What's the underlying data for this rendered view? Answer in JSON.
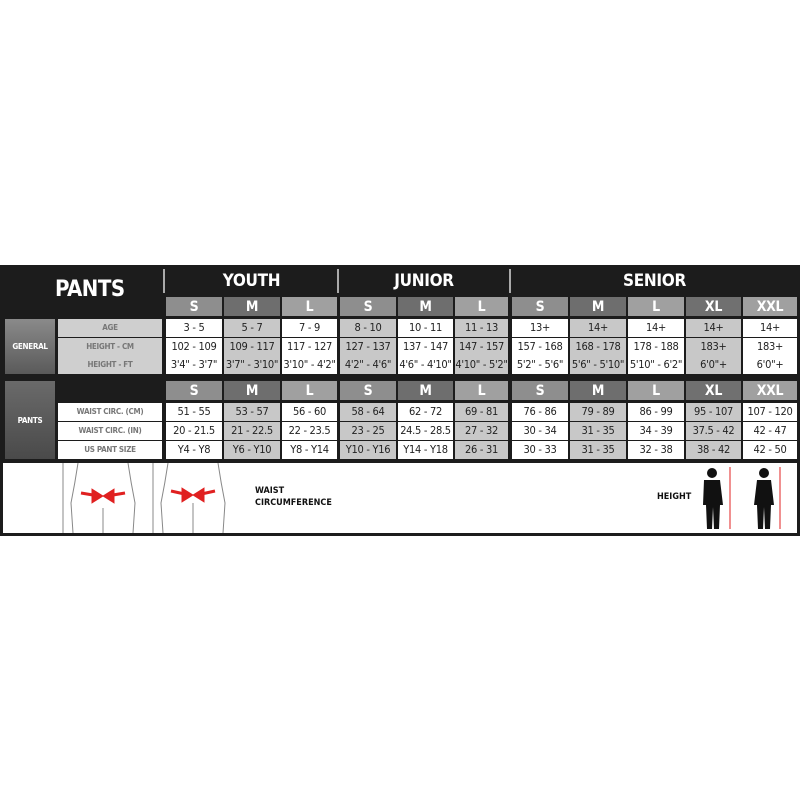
{
  "title": "PANTS",
  "groups": [
    {
      "name": "YOUTH",
      "sizes": [
        "S",
        "M",
        "L"
      ]
    },
    {
      "name": "JUNIOR",
      "sizes": [
        "S",
        "M",
        "L"
      ]
    },
    {
      "name": "SENIOR",
      "sizes": [
        "S",
        "M",
        "L",
        "XL",
        "XXL"
      ]
    }
  ],
  "sections": [
    {
      "name": "GENERAL",
      "rows": [
        {
          "label": "AGE",
          "values": [
            "3 - 5",
            "5 - 7",
            "7 - 9",
            "8 - 10",
            "10 - 11",
            "11 - 13",
            "13+",
            "14+",
            "14+",
            "14+",
            "14+"
          ]
        },
        {
          "label": "HEIGHT - CM",
          "values": [
            "102 - 109",
            "109 - 117",
            "117 - 127",
            "127 - 137",
            "137 - 147",
            "147 - 157",
            "157 - 168",
            "168 - 178",
            "178 - 188",
            "183+",
            "183+"
          ]
        },
        {
          "label": "HEIGHT - FT",
          "values": [
            "3'4\" - 3'7\"",
            "3'7\" - 3'10\"",
            "3'10\" - 4'2\"",
            "4'2\" - 4'6\"",
            "4'6\" - 4'10\"",
            "4'10\" - 5'2\"",
            "5'2\" - 5'6\"",
            "5'6\" - 5'10\"",
            "5'10\" - 6'2\"",
            "6'0\"+",
            "6'0\"+"
          ]
        }
      ]
    },
    {
      "name": "PANTS",
      "rows": [
        {
          "label": "WAIST CIRC. (CM)",
          "values": [
            "51 - 55",
            "53 - 57",
            "56 - 60",
            "58 - 64",
            "62 - 72",
            "69 - 81",
            "76 - 86",
            "79 - 89",
            "86 - 99",
            "95 - 107",
            "107 - 120"
          ]
        },
        {
          "label": "WAIST CIRC. (IN)",
          "values": [
            "20 - 21.5",
            "21 - 22.5",
            "22 - 23.5",
            "23 - 25",
            "24.5 - 28.5",
            "27 - 32",
            "30 - 34",
            "31 - 35",
            "34 - 39",
            "37.5 - 42",
            "42 - 47"
          ]
        },
        {
          "label": "US PANT SIZE",
          "values": [
            "Y4 - Y8",
            "Y6 - Y10",
            "Y8 - Y14",
            "Y10 - Y16",
            "Y14 - Y18",
            "26 - 31",
            "30 - 33",
            "31 - 35",
            "32 - 38",
            "38 - 42",
            "42 - 50"
          ]
        }
      ]
    }
  ],
  "illustration": {
    "waist_line1": "WAIST",
    "waist_line2": "CIRCUMFERENCE",
    "height": "HEIGHT",
    "arrow_color": "#e02020"
  }
}
